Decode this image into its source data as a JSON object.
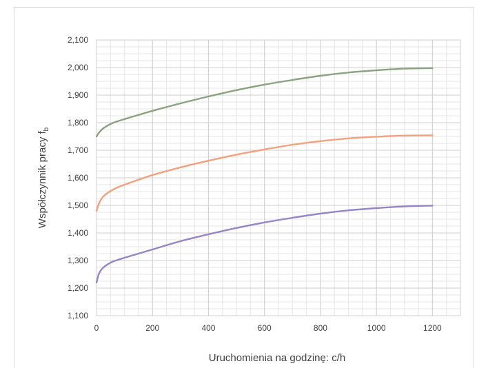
{
  "chart_data": {
    "type": "line",
    "title": "",
    "xlabel": "Uruchomienia na godzinę: c/h",
    "ylabel_main": "Współczynnik pracy f",
    "ylabel_sub": "b",
    "xlim": [
      0,
      1300
    ],
    "ylim": [
      1.1,
      2.1
    ],
    "x_ticks": [
      "0",
      "200",
      "400",
      "600",
      "800",
      "1000",
      "1200"
    ],
    "y_ticks": [
      "1,100",
      "1,200",
      "1,300",
      "1,400",
      "1,500",
      "1,600",
      "1,700",
      "1,800",
      "1,900",
      "2,000",
      "2,100"
    ],
    "x_tick_values": [
      0,
      200,
      400,
      600,
      800,
      1000,
      1200
    ],
    "y_tick_values": [
      1.1,
      1.2,
      1.3,
      1.4,
      1.5,
      1.6,
      1.7,
      1.8,
      1.9,
      2.0,
      2.1
    ],
    "grid": true,
    "x_minor_step": 50,
    "y_minor_step": 0.025,
    "series": [
      {
        "color": "#8aa27e",
        "x": [
          0,
          10,
          25,
          50,
          75,
          100,
          150,
          200,
          300,
          400,
          500,
          600,
          700,
          800,
          900,
          1000,
          1100,
          1200
        ],
        "y": [
          1.75,
          1.765,
          1.78,
          1.795,
          1.805,
          1.813,
          1.828,
          1.843,
          1.87,
          1.895,
          1.918,
          1.938,
          1.955,
          1.97,
          1.982,
          1.99,
          1.996,
          1.998
        ]
      },
      {
        "color": "#f4a07c",
        "x": [
          0,
          10,
          25,
          50,
          75,
          100,
          150,
          200,
          300,
          400,
          500,
          600,
          700,
          800,
          900,
          1000,
          1100,
          1200
        ],
        "y": [
          1.48,
          1.51,
          1.533,
          1.552,
          1.565,
          1.575,
          1.593,
          1.61,
          1.638,
          1.662,
          1.684,
          1.703,
          1.72,
          1.733,
          1.743,
          1.749,
          1.753,
          1.754
        ]
      },
      {
        "color": "#9585c6",
        "x": [
          0,
          10,
          25,
          50,
          75,
          100,
          150,
          200,
          300,
          400,
          500,
          600,
          700,
          800,
          900,
          1000,
          1100,
          1200
        ],
        "y": [
          1.22,
          1.255,
          1.275,
          1.292,
          1.302,
          1.31,
          1.325,
          1.34,
          1.37,
          1.395,
          1.418,
          1.438,
          1.455,
          1.47,
          1.482,
          1.49,
          1.496,
          1.499
        ]
      }
    ]
  }
}
